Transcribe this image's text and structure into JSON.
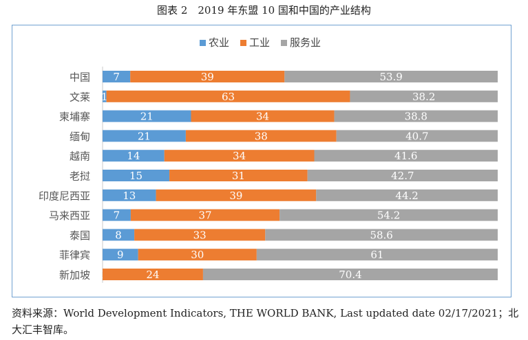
{
  "figure_title": "图表 2　2019 年东盟 10 国和中国的产业结构",
  "source_note": "资料来源：World Development Indicators, THE WORLD BANK, Last updated date 02/17/2021；北大汇丰智库。",
  "colors": {
    "agriculture": "#5b9bd5",
    "industry": "#ed7d31",
    "services": "#a5a5a5",
    "border": "#6fa0d0"
  },
  "chart_data": {
    "type": "bar",
    "orientation": "horizontal",
    "stacked": true,
    "categories": [
      "中国",
      "文莱",
      "柬埔寨",
      "缅甸",
      "越南",
      "老挝",
      "印度尼西亚",
      "马来西亚",
      "泰国",
      "菲律宾",
      "新加坡"
    ],
    "series": [
      {
        "name": "农业",
        "values": [
          7,
          1,
          21,
          21,
          14,
          15,
          13,
          7,
          8,
          9,
          0
        ]
      },
      {
        "name": "工业",
        "values": [
          39,
          63,
          34,
          38,
          34,
          31,
          39,
          37,
          33,
          30,
          24
        ]
      },
      {
        "name": "服务业",
        "values": [
          53.9,
          38.2,
          38.8,
          40.7,
          41.6,
          42.7,
          44.2,
          54.2,
          58.6,
          61,
          70.4
        ]
      }
    ],
    "legend_position": "top-center",
    "grid": false,
    "data_labels": true
  }
}
